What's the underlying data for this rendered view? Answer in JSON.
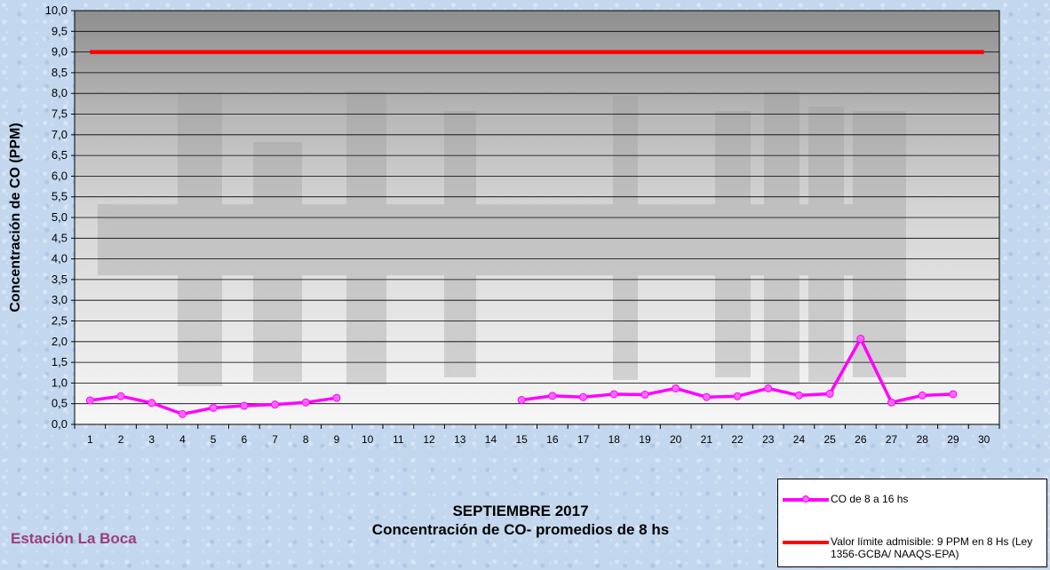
{
  "chart_data": {
    "type": "line",
    "ylabel": "Concentración de CO (PPM)",
    "title": "SEPTIEMBRE 2017",
    "subtitle": "Concentración de CO- promedios de 8 hs",
    "ylim": [
      0,
      10
    ],
    "ytick_step": 0.5,
    "categories": [
      "1",
      "2",
      "3",
      "4",
      "5",
      "6",
      "7",
      "8",
      "9",
      "10",
      "11",
      "12",
      "13",
      "14",
      "15",
      "16",
      "17",
      "18",
      "19",
      "20",
      "21",
      "22",
      "23",
      "24",
      "25",
      "26",
      "27",
      "28",
      "29",
      "30"
    ],
    "series": [
      {
        "name": "CO de 8 a 16 hs",
        "color": "#ff00ff",
        "marker_color": "#ff66ff",
        "values": [
          0.58,
          0.68,
          0.52,
          0.25,
          0.4,
          0.45,
          0.48,
          0.53,
          0.64,
          null,
          null,
          null,
          null,
          null,
          0.59,
          0.69,
          0.66,
          0.73,
          0.72,
          0.87,
          0.66,
          0.68,
          0.87,
          0.7,
          0.74,
          2.07,
          0.53,
          0.7,
          0.73,
          null
        ]
      },
      {
        "name": "Valor límite admisible: 9 PPM en 8 Hs (Ley 1356-GCBA/ NAAQS-EPA)",
        "color": "#ff0000",
        "values": [
          9,
          9,
          9,
          9,
          9,
          9,
          9,
          9,
          9,
          9,
          9,
          9,
          9,
          9,
          9,
          9,
          9,
          9,
          9,
          9,
          9,
          9,
          9,
          9,
          9,
          9,
          9,
          9,
          9,
          9
        ]
      }
    ],
    "grid": true,
    "legend_position": "bottom-right"
  },
  "station_label": "Estación La Boca"
}
